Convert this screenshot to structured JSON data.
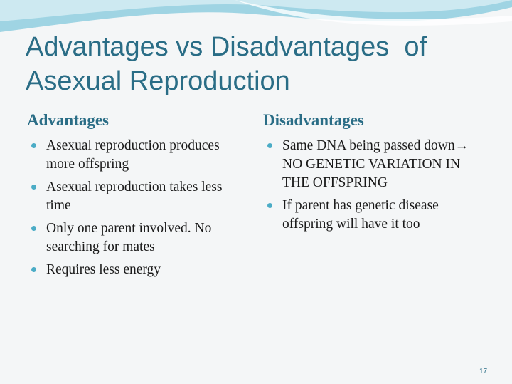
{
  "slide": {
    "title_lines": [
      "Advantages vs Disadvantages  of",
      "Asexual Reproduction"
    ],
    "advantages": {
      "heading": "Advantages",
      "bullets": [
        "Asexual reproduction produces more offspring",
        "Asexual reproduction takes less time",
        "Only one parent involved. No searching for mates",
        "Requires less energy"
      ]
    },
    "disadvantages": {
      "heading": "Disadvantages",
      "bullets": [
        "Same DNA being passed down→ NO GENETIC VARIATION IN THE OFFSPRING",
        "If parent has genetic disease offspring will have it too"
      ]
    },
    "page_number": "17"
  }
}
